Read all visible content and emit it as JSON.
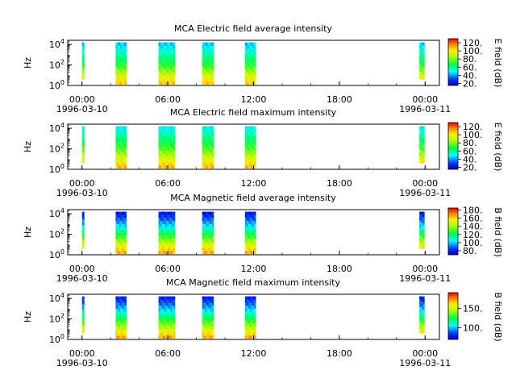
{
  "chart_data": [
    {
      "type": "heatmap",
      "title": "MCA  Electric field average intensity",
      "ylabel": "Hz",
      "colorbar_label": "E field (dB)",
      "colorbar_range": [
        15,
        130
      ],
      "colorbar_ticks": [
        "20.",
        "40.",
        "60.",
        "80.",
        "100.",
        "120."
      ],
      "colorbar_tick_values": [
        20,
        40,
        60,
        80,
        100,
        120
      ],
      "ylim_exp": [
        0,
        4.4
      ],
      "y_ticks": [
        {
          "base": "10",
          "exp": "0",
          "value_exp": 0
        },
        {
          "base": "10",
          "exp": "2",
          "value_exp": 2
        },
        {
          "base": "10",
          "exp": "4",
          "value_exp": 4
        }
      ],
      "x_ticks": [
        {
          "label": "00:00",
          "date": "1996-03-10",
          "hour": 0
        },
        {
          "label": "06:00",
          "date": "",
          "hour": 6
        },
        {
          "label": "12:00",
          "date": "",
          "hour": 12
        },
        {
          "label": "18:00",
          "date": "",
          "hour": 18
        },
        {
          "label": "00:00",
          "date": "1996-03-11",
          "hour": 24
        }
      ],
      "xlim_hours": [
        -1,
        25
      ],
      "data_intervals_hours": [
        [
          0.0,
          0.15
        ],
        [
          2.35,
          3.1
        ],
        [
          5.35,
          6.5
        ],
        [
          8.4,
          9.2
        ],
        [
          11.4,
          12.15
        ],
        [
          23.6,
          23.95
        ]
      ],
      "spectrum_db": [
        {
          "freq_exp": 0,
          "db": 110
        },
        {
          "freq_exp": 1,
          "db": 92
        },
        {
          "freq_exp": 2,
          "db": 70
        },
        {
          "freq_exp": 3,
          "db": 58
        },
        {
          "freq_exp": 4,
          "db": 45
        }
      ]
    },
    {
      "type": "heatmap",
      "title": "MCA  Electric field maximum intensity",
      "ylabel": "Hz",
      "colorbar_label": "E field (dB)",
      "colorbar_range": [
        15,
        130
      ],
      "colorbar_ticks": [
        "20.",
        "40.",
        "60.",
        "80.",
        "100.",
        "120."
      ],
      "colorbar_tick_values": [
        20,
        40,
        60,
        80,
        100,
        120
      ],
      "ylim_exp": [
        0,
        4.4
      ],
      "y_ticks": [
        {
          "base": "10",
          "exp": "0",
          "value_exp": 0
        },
        {
          "base": "10",
          "exp": "2",
          "value_exp": 2
        },
        {
          "base": "10",
          "exp": "4",
          "value_exp": 4
        }
      ],
      "x_ticks": [
        {
          "label": "00:00",
          "date": "1996-03-10",
          "hour": 0
        },
        {
          "label": "06:00",
          "date": "",
          "hour": 6
        },
        {
          "label": "12:00",
          "date": "",
          "hour": 12
        },
        {
          "label": "18:00",
          "date": "",
          "hour": 18
        },
        {
          "label": "00:00",
          "date": "1996-03-11",
          "hour": 24
        }
      ],
      "xlim_hours": [
        -1,
        25
      ],
      "data_intervals_hours": [
        [
          0.0,
          0.15
        ],
        [
          2.35,
          3.1
        ],
        [
          5.35,
          6.5
        ],
        [
          8.4,
          9.2
        ],
        [
          11.4,
          12.15
        ],
        [
          23.6,
          23.95
        ]
      ],
      "spectrum_db": [
        {
          "freq_exp": 0,
          "db": 112
        },
        {
          "freq_exp": 1,
          "db": 95
        },
        {
          "freq_exp": 2,
          "db": 75
        },
        {
          "freq_exp": 3,
          "db": 62
        },
        {
          "freq_exp": 4,
          "db": 50
        }
      ]
    },
    {
      "type": "heatmap",
      "title": "MCA  Magnetic field average intensity",
      "ylabel": "Hz",
      "colorbar_label": "B field (dB)",
      "colorbar_range": [
        70,
        185
      ],
      "colorbar_ticks": [
        "80.",
        "100.",
        "120.",
        "140.",
        "160.",
        "180."
      ],
      "colorbar_tick_values": [
        80,
        100,
        120,
        140,
        160,
        180
      ],
      "ylim_exp": [
        0,
        4.4
      ],
      "y_ticks": [
        {
          "base": "10",
          "exp": "0",
          "value_exp": 0
        },
        {
          "base": "10",
          "exp": "2",
          "value_exp": 2
        },
        {
          "base": "10",
          "exp": "4",
          "value_exp": 4
        }
      ],
      "x_ticks": [
        {
          "label": "00:00",
          "date": "1996-03-10",
          "hour": 0
        },
        {
          "label": "06:00",
          "date": "",
          "hour": 6
        },
        {
          "label": "12:00",
          "date": "",
          "hour": 12
        },
        {
          "label": "18:00",
          "date": "",
          "hour": 18
        },
        {
          "label": "00:00",
          "date": "1996-03-11",
          "hour": 24
        }
      ],
      "xlim_hours": [
        -1,
        25
      ],
      "data_intervals_hours": [
        [
          0.0,
          0.15
        ],
        [
          2.35,
          3.1
        ],
        [
          5.35,
          6.5
        ],
        [
          8.4,
          9.2
        ],
        [
          11.4,
          12.15
        ],
        [
          23.6,
          23.95
        ]
      ],
      "spectrum_db": [
        {
          "freq_exp": 0,
          "db": 170
        },
        {
          "freq_exp": 1,
          "db": 148
        },
        {
          "freq_exp": 2,
          "db": 122
        },
        {
          "freq_exp": 3,
          "db": 98
        },
        {
          "freq_exp": 4,
          "db": 78
        }
      ]
    },
    {
      "type": "heatmap",
      "title": "MCA  Magnetic field maximum intensity",
      "ylabel": "Hz",
      "colorbar_label": "B field (dB)",
      "colorbar_range": [
        70,
        190
      ],
      "colorbar_ticks": [
        "100.",
        "150."
      ],
      "colorbar_tick_values": [
        100,
        150
      ],
      "ylim_exp": [
        0,
        4.4
      ],
      "y_ticks": [
        {
          "base": "10",
          "exp": "0",
          "value_exp": 0
        },
        {
          "base": "10",
          "exp": "2",
          "value_exp": 2
        },
        {
          "base": "10",
          "exp": "4",
          "value_exp": 4
        }
      ],
      "x_ticks": [
        {
          "label": "00:00",
          "date": "1996-03-10",
          "hour": 0
        },
        {
          "label": "06:00",
          "date": "",
          "hour": 6
        },
        {
          "label": "12:00",
          "date": "",
          "hour": 12
        },
        {
          "label": "18:00",
          "date": "",
          "hour": 18
        },
        {
          "label": "00:00",
          "date": "1996-03-11",
          "hour": 24
        }
      ],
      "xlim_hours": [
        -1,
        25
      ],
      "data_intervals_hours": [
        [
          0.0,
          0.15
        ],
        [
          2.35,
          3.1
        ],
        [
          5.35,
          6.5
        ],
        [
          8.4,
          9.2
        ],
        [
          11.4,
          12.15
        ],
        [
          23.6,
          23.95
        ]
      ],
      "spectrum_db": [
        {
          "freq_exp": 0,
          "db": 175
        },
        {
          "freq_exp": 1,
          "db": 150
        },
        {
          "freq_exp": 2,
          "db": 125
        },
        {
          "freq_exp": 3,
          "db": 100
        },
        {
          "freq_exp": 4,
          "db": 80
        }
      ]
    }
  ]
}
